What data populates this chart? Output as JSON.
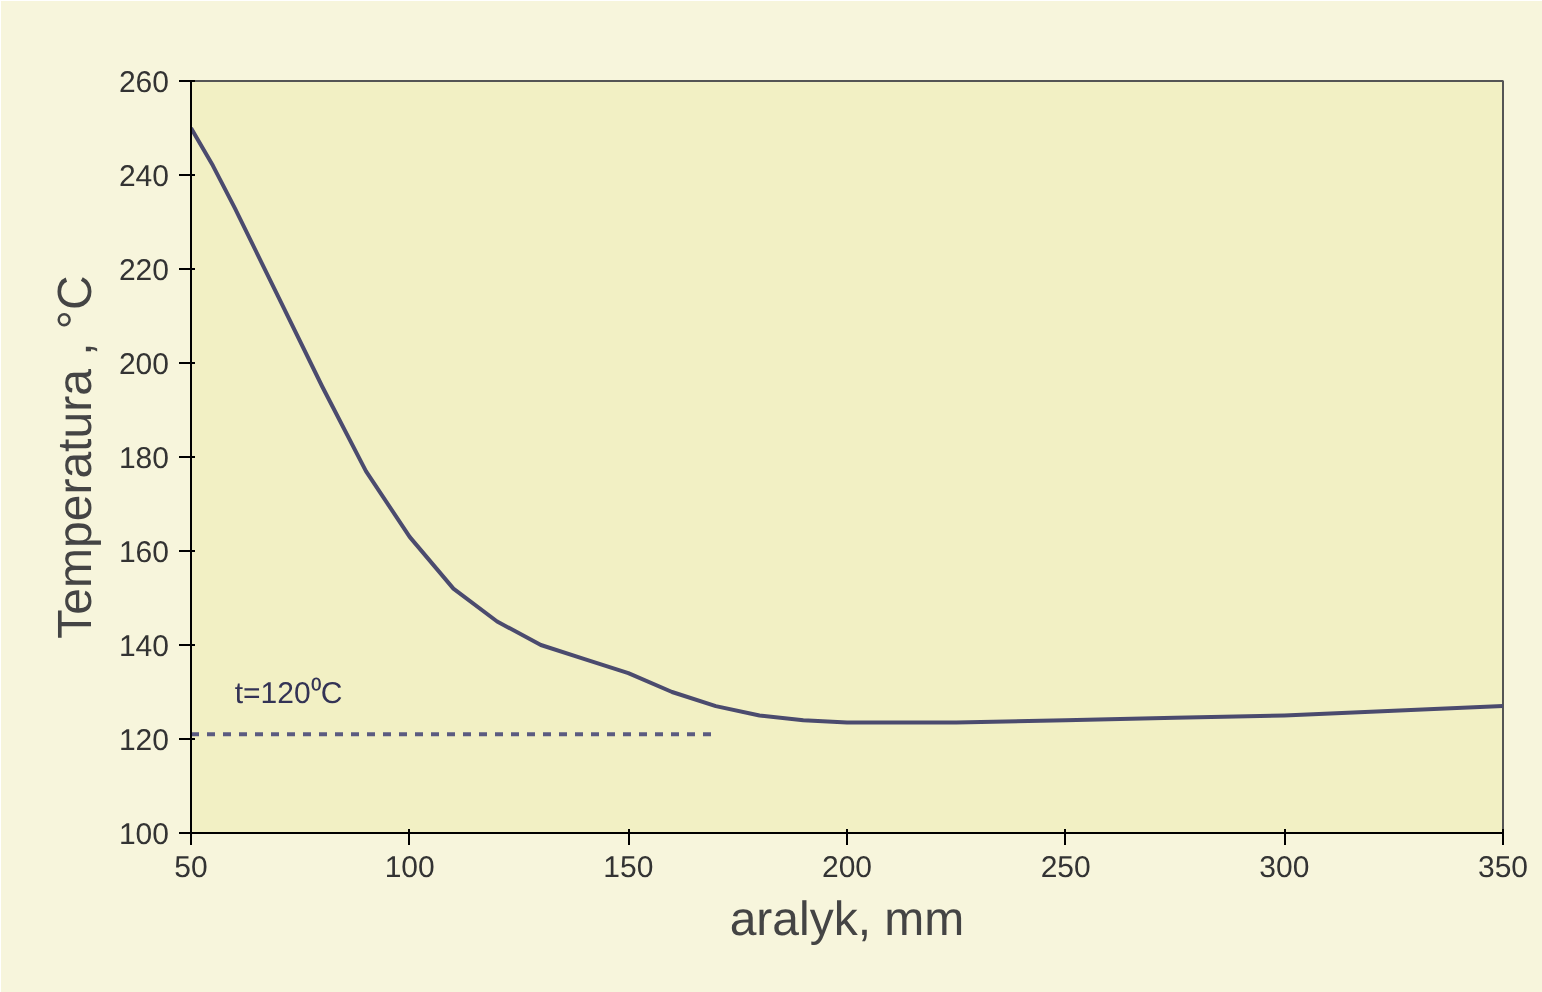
{
  "chart_data": {
    "type": "line",
    "xlabel": "aralyk, mm",
    "ylabel": "Temperatura , °C",
    "xlim": [
      50,
      350
    ],
    "ylim": [
      100,
      260
    ],
    "xticks": [
      50,
      100,
      150,
      200,
      250,
      300,
      350
    ],
    "yticks": [
      100,
      120,
      140,
      160,
      180,
      200,
      220,
      240,
      260
    ],
    "grid": false,
    "marker": "none",
    "series": [
      {
        "color": "#4b4b6e",
        "line_style": "solid",
        "x": [
          50,
          55,
          60,
          70,
          80,
          90,
          100,
          110,
          120,
          130,
          140,
          150,
          160,
          170,
          180,
          190,
          200,
          225,
          250,
          275,
          300,
          325,
          350
        ],
        "values": [
          250,
          242,
          233,
          214,
          195,
          177,
          163,
          152,
          145,
          140,
          137,
          134,
          130,
          127,
          125,
          124,
          123.5,
          123.5,
          124,
          124.5,
          125,
          126,
          127
        ]
      },
      {
        "name": "t=120⁰C",
        "color": "#5b5b80",
        "line_style": "dashed",
        "x": [
          50,
          170
        ],
        "values": [
          121,
          121
        ]
      }
    ]
  }
}
